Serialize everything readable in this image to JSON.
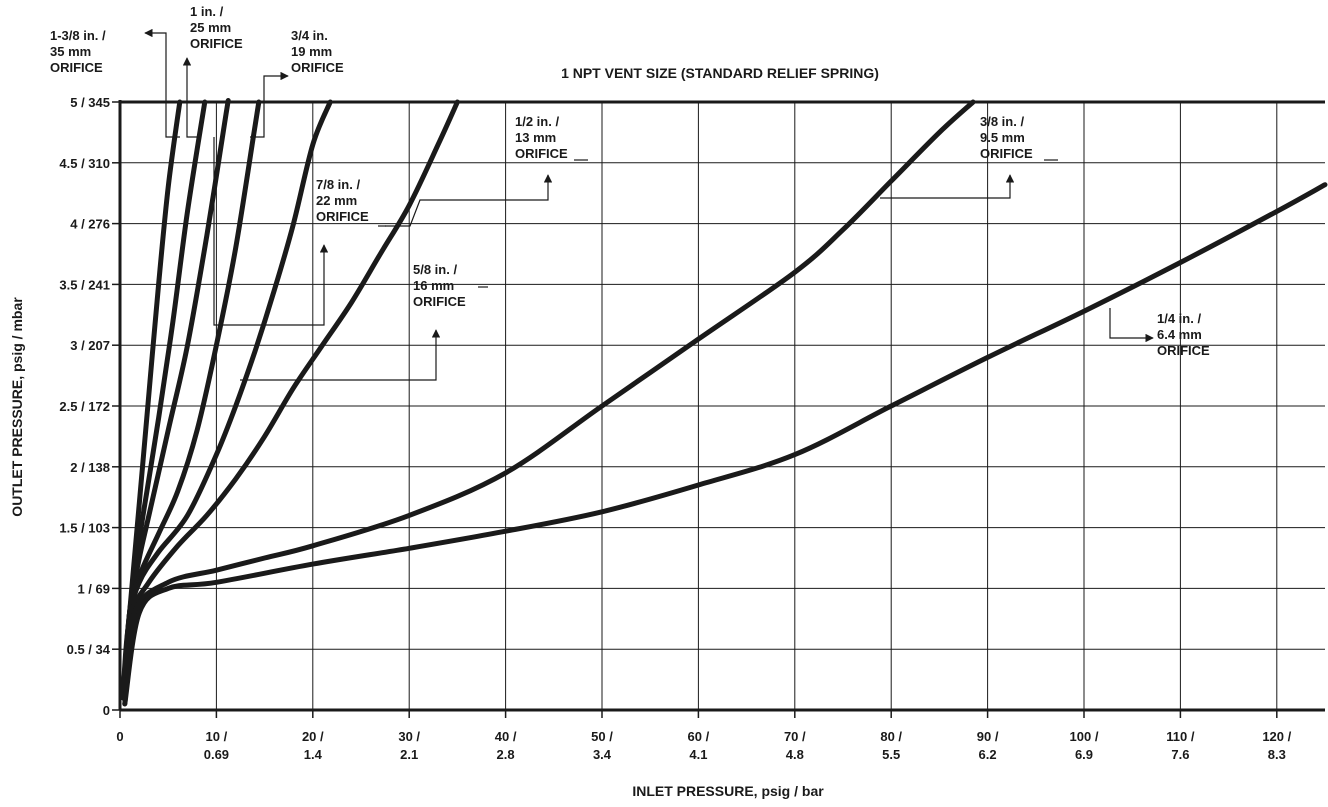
{
  "chart_data": {
    "type": "line",
    "title": "1 NPT VENT SIZE (STANDARD RELIEF SPRING)",
    "xlabel": "INLET PRESSURE, psig / bar",
    "ylabel": "OUTLET PRESSURE, psig / mbar",
    "xlim": [
      0,
      125
    ],
    "ylim": [
      0,
      5
    ],
    "grid": true,
    "x_ticks": [
      {
        "value": 0,
        "l1": "0",
        "l2": ""
      },
      {
        "value": 10,
        "l1": "10 /",
        "l2": "0.69"
      },
      {
        "value": 20,
        "l1": "20 /",
        "l2": "1.4"
      },
      {
        "value": 30,
        "l1": "30 /",
        "l2": "2.1"
      },
      {
        "value": 40,
        "l1": "40 /",
        "l2": "2.8"
      },
      {
        "value": 50,
        "l1": "50 /",
        "l2": "3.4"
      },
      {
        "value": 60,
        "l1": "60 /",
        "l2": "4.1"
      },
      {
        "value": 70,
        "l1": "70 /",
        "l2": "4.8"
      },
      {
        "value": 80,
        "l1": "80 /",
        "l2": "5.5"
      },
      {
        "value": 90,
        "l1": "90 /",
        "l2": "6.2"
      },
      {
        "value": 100,
        "l1": "100 /",
        "l2": "6.9"
      },
      {
        "value": 110,
        "l1": "110 /",
        "l2": "7.6"
      },
      {
        "value": 120,
        "l1": "120 /",
        "l2": "8.3"
      }
    ],
    "y_ticks": [
      {
        "value": 0,
        "label": "0"
      },
      {
        "value": 0.5,
        "label": "0.5 / 34"
      },
      {
        "value": 1,
        "label": "1 / 69"
      },
      {
        "value": 1.5,
        "label": "1.5 / 103"
      },
      {
        "value": 2,
        "label": "2 / 138"
      },
      {
        "value": 2.5,
        "label": "2.5 / 172"
      },
      {
        "value": 3,
        "label": "3 / 207"
      },
      {
        "value": 3.5,
        "label": "3.5 / 241"
      },
      {
        "value": 4,
        "label": "4 / 276"
      },
      {
        "value": 4.5,
        "label": "4.5 / 310"
      },
      {
        "value": 5,
        "label": "5 / 345"
      }
    ],
    "series": [
      {
        "name": "1-3/8 in. / 35 mm ORIFICE",
        "x": [
          0.3,
          1,
          2,
          3,
          4,
          5,
          6.2
        ],
        "y": [
          0.1,
          0.8,
          1.7,
          2.6,
          3.5,
          4.3,
          5
        ]
      },
      {
        "name": "1 in. / 25 mm ORIFICE",
        "x": [
          0.3,
          1,
          2,
          3,
          4,
          5.5,
          7,
          8.8
        ],
        "y": [
          0.1,
          0.8,
          1.4,
          1.9,
          2.4,
          3.2,
          4.1,
          5
        ]
      },
      {
        "name": "3/4 in. / 19 mm ORIFICE",
        "x": [
          0.3,
          1,
          2,
          3,
          5,
          7,
          9,
          11,
          11.2
        ],
        "y": [
          0.1,
          0.8,
          1.25,
          1.6,
          2.3,
          3,
          3.9,
          4.9,
          5
        ]
      },
      {
        "name": "7/8 in. / 22 mm ORIFICE",
        "x": [
          0.3,
          1,
          2,
          4,
          6,
          8,
          10,
          12,
          14,
          14.4
        ],
        "y": [
          0.1,
          0.8,
          1.1,
          1.45,
          1.8,
          2.3,
          3,
          3.8,
          4.8,
          5
        ]
      },
      {
        "name": "5/8 in. / 16 mm ORIFICE",
        "x": [
          0.3,
          1,
          2,
          4,
          7,
          10,
          12,
          14,
          16,
          18,
          20,
          21.8
        ],
        "y": [
          0.1,
          0.75,
          1.05,
          1.3,
          1.6,
          2.1,
          2.5,
          2.95,
          3.45,
          4,
          4.65,
          5
        ]
      },
      {
        "name": "1/2 in. / 13 mm ORIFICE",
        "x": [
          0.3,
          1,
          3,
          6,
          9,
          12,
          15,
          18,
          21,
          24,
          27,
          30,
          33,
          35
        ],
        "y": [
          0.1,
          0.75,
          1.05,
          1.35,
          1.6,
          1.9,
          2.25,
          2.65,
          3,
          3.35,
          3.75,
          4.15,
          4.65,
          5
        ]
      },
      {
        "name": "3/8 in. / 9.5 mm ORIFICE",
        "x": [
          0.5,
          1.5,
          5,
          10,
          15,
          20,
          30,
          40,
          50,
          60,
          70,
          75,
          80,
          85,
          88.5
        ],
        "y": [
          0.05,
          0.8,
          1.05,
          1.15,
          1.25,
          1.35,
          1.6,
          1.95,
          2.5,
          3.05,
          3.6,
          3.95,
          4.35,
          4.75,
          5
        ]
      },
      {
        "name": "1/4 in. / 6.4 mm ORIFICE",
        "x": [
          0.5,
          2,
          5,
          10,
          20,
          30,
          40,
          50,
          60,
          70,
          80,
          90,
          100,
          110,
          120,
          125
        ],
        "y": [
          0.05,
          0.8,
          1.0,
          1.05,
          1.2,
          1.33,
          1.47,
          1.63,
          1.85,
          2.1,
          2.5,
          2.9,
          3.28,
          3.68,
          4.1,
          4.32
        ]
      }
    ],
    "annotations": [
      {
        "lines": [
          "1-3/8 in. /",
          "35 mm",
          "ORIFICE"
        ]
      },
      {
        "lines": [
          "1 in. /",
          "25 mm",
          "ORIFICE"
        ]
      },
      {
        "lines": [
          "3/4 in.",
          "19 mm",
          "ORIFICE"
        ]
      },
      {
        "lines": [
          "7/8 in. /",
          "22 mm",
          "ORIFICE"
        ]
      },
      {
        "lines": [
          "5/8 in. /",
          "16 mm",
          "ORIFICE"
        ]
      },
      {
        "lines": [
          "1/2 in. /",
          "13 mm",
          "ORIFICE"
        ]
      },
      {
        "lines": [
          "3/8 in. /",
          "9.5 mm",
          "ORIFICE"
        ]
      },
      {
        "lines": [
          "1/4 in. /",
          "6.4 mm",
          "ORIFICE"
        ]
      }
    ]
  }
}
